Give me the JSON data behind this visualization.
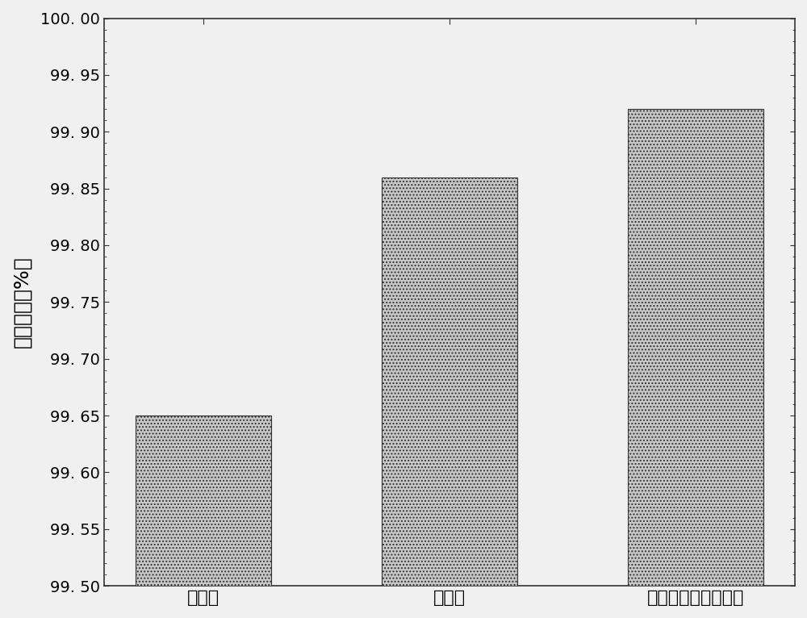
{
  "categories": [
    "改造前",
    "改造后",
    "低低温最优控制策略"
  ],
  "values": [
    99.65,
    99.86,
    99.92
  ],
  "bar_color": "#c8c8c8",
  "bar_edgecolor": "#333333",
  "ylim": [
    99.5,
    100.0
  ],
  "yticks": [
    99.5,
    99.55,
    99.6,
    99.65,
    99.7,
    99.75,
    99.8,
    99.85,
    99.9,
    99.95,
    100.0
  ],
  "ytick_labels": [
    "99. 50",
    "99. 55",
    "99. 60",
    "99. 65",
    "99. 70",
    "99. 75",
    "99. 80",
    "99. 85",
    "99. 90",
    "99. 95",
    "100. 00"
  ],
  "ylabel": "除尘效率（%）",
  "ylabel_fontsize": 18,
  "tick_fontsize": 14,
  "xtick_fontsize": 16,
  "background_color": "#f0f0f0",
  "bar_width": 0.55,
  "hatch": "....",
  "hatch_color": "#aaaaaa"
}
